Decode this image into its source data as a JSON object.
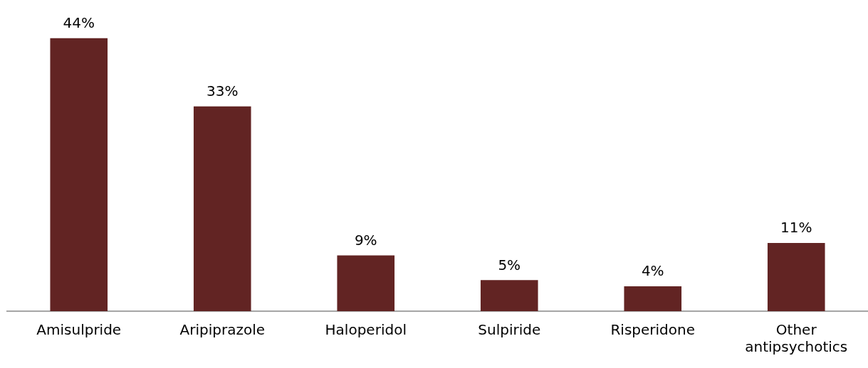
{
  "chart_data": {
    "type": "bar",
    "categories": [
      "Amisulpride",
      "Aripiprazole",
      "Haloperidol",
      "Sulpiride",
      "Risperidone",
      "Other antipsychotics"
    ],
    "values": [
      44,
      33,
      9,
      5,
      4,
      11
    ],
    "value_labels": [
      "44%",
      "33%",
      "9%",
      "5%",
      "4%",
      "11%"
    ],
    "color": "#622423",
    "grid": false,
    "legend": false,
    "tick_labels": "x"
  }
}
